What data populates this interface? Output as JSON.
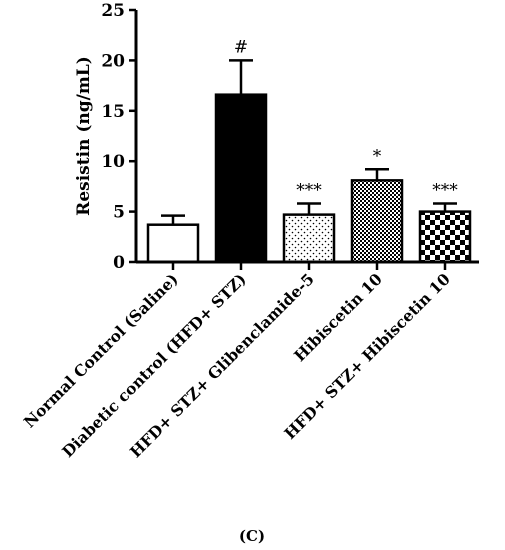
{
  "chart_data": {
    "type": "bar",
    "ylabel": "Resistin (ng/mL)",
    "ylim": [
      0,
      25
    ],
    "yticks": [
      0,
      5,
      10,
      15,
      20,
      25
    ],
    "categories": [
      "Normal Control (Saline)",
      "Diabetic control (HFD+ STZ)",
      "HFD+ STZ+ Glibenclamide-5",
      "Hibiscetin 10",
      "HFD+ STZ+ Hibiscetin 10"
    ],
    "values": [
      3.7,
      16.6,
      4.7,
      8.1,
      5.0
    ],
    "errors": [
      0.9,
      3.4,
      1.1,
      1.1,
      0.8
    ],
    "significance": [
      "",
      "#",
      "***",
      "*",
      "***"
    ],
    "fills": [
      "white",
      "black",
      "dots",
      "checker-fine",
      "checker-coarse"
    ],
    "panel_label": "(C)"
  },
  "colors": {
    "axis": "#000000",
    "bar_stroke": "#000000",
    "background": "#ffffff"
  }
}
